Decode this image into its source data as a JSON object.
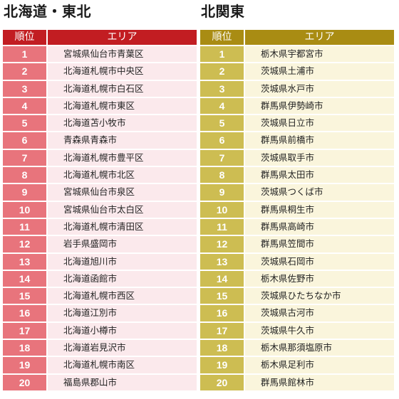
{
  "left": {
    "title": "北海道・東北",
    "header": {
      "rank": "順位",
      "area": "エリア"
    },
    "accent_color": "#c21d22",
    "rows": [
      {
        "rank": "1",
        "area": "宮城県仙台市青葉区"
      },
      {
        "rank": "2",
        "area": "北海道札幌市中央区"
      },
      {
        "rank": "3",
        "area": "北海道札幌市白石区"
      },
      {
        "rank": "4",
        "area": "北海道札幌市東区"
      },
      {
        "rank": "5",
        "area": "北海道苫小牧市"
      },
      {
        "rank": "6",
        "area": "青森県青森市"
      },
      {
        "rank": "7",
        "area": "北海道札幌市豊平区"
      },
      {
        "rank": "8",
        "area": "北海道札幌市北区"
      },
      {
        "rank": "9",
        "area": "宮城県仙台市泉区"
      },
      {
        "rank": "10",
        "area": "宮城県仙台市太白区"
      },
      {
        "rank": "11",
        "area": "北海道札幌市清田区"
      },
      {
        "rank": "12",
        "area": "岩手県盛岡市"
      },
      {
        "rank": "13",
        "area": "北海道旭川市"
      },
      {
        "rank": "14",
        "area": "北海道函館市"
      },
      {
        "rank": "15",
        "area": "北海道札幌市西区"
      },
      {
        "rank": "16",
        "area": "北海道江別市"
      },
      {
        "rank": "17",
        "area": "北海道小樽市"
      },
      {
        "rank": "18",
        "area": "北海道岩見沢市"
      },
      {
        "rank": "19",
        "area": "北海道札幌市南区"
      },
      {
        "rank": "20",
        "area": "福島県郡山市"
      }
    ]
  },
  "right": {
    "title": "北関東",
    "header": {
      "rank": "順位",
      "area": "エリア"
    },
    "accent_color": "#a98c13",
    "rows": [
      {
        "rank": "1",
        "area": "栃木県宇都宮市"
      },
      {
        "rank": "2",
        "area": "茨城県土浦市"
      },
      {
        "rank": "3",
        "area": "茨城県水戸市"
      },
      {
        "rank": "4",
        "area": "群馬県伊勢崎市"
      },
      {
        "rank": "5",
        "area": "茨城県日立市"
      },
      {
        "rank": "6",
        "area": "群馬県前橋市"
      },
      {
        "rank": "7",
        "area": "茨城県取手市"
      },
      {
        "rank": "8",
        "area": "群馬県太田市"
      },
      {
        "rank": "9",
        "area": "茨城県つくば市"
      },
      {
        "rank": "10",
        "area": "群馬県桐生市"
      },
      {
        "rank": "11",
        "area": "群馬県高崎市"
      },
      {
        "rank": "12",
        "area": "群馬県笠間市"
      },
      {
        "rank": "13",
        "area": "茨城県石岡市"
      },
      {
        "rank": "14",
        "area": "栃木県佐野市"
      },
      {
        "rank": "15",
        "area": "茨城県ひたちなか市"
      },
      {
        "rank": "16",
        "area": "茨城県古河市"
      },
      {
        "rank": "17",
        "area": "茨城県牛久市"
      },
      {
        "rank": "18",
        "area": "栃木県那須塩原市"
      },
      {
        "rank": "19",
        "area": "栃木県足利市"
      },
      {
        "rank": "20",
        "area": "群馬県館林市"
      }
    ]
  }
}
